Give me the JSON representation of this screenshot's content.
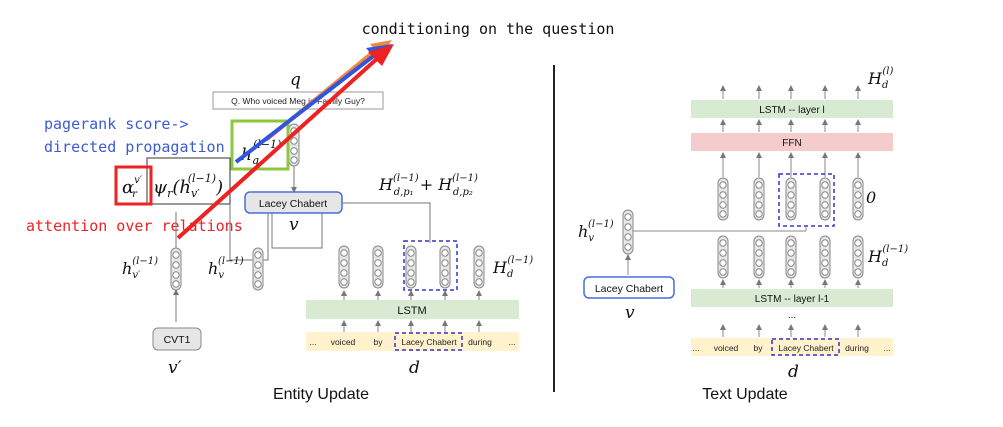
{
  "top_annotation": "conditioning on the question",
  "left_panel": {
    "caption": "Entity Update",
    "question_box": "Q. Who voiced Meg in Family Guy?",
    "q_symbol": "q",
    "h_q_label": "h",
    "h_q_sub": "q",
    "h_q_sup": "(l−1)",
    "pagerank_label": "pagerank score->",
    "directed_label": "directed propagation",
    "attention_label": "attention over relations",
    "alpha_label": "α",
    "alpha_sup": "v′",
    "alpha_sub": "r",
    "psi_label": "ψ",
    "psi_sub": "r",
    "psi_arg_open": "(h",
    "psi_arg_sub": "v′",
    "psi_arg_sup": "(l−1)",
    "psi_arg_close": ")",
    "entity_node": "Lacey Chabert",
    "v_symbol": "v",
    "H_sum_label": "H",
    "H_sum_sup1": "(l−1)",
    "H_sum_sub1": "d,p₁",
    "H_sum_plus": "+ H",
    "H_sum_sup2": "(l−1)",
    "H_sum_sub2": "d,p₂",
    "h_vprime_label": "h",
    "h_vprime_sub": "v′",
    "h_vprime_sup": "(l−1)",
    "h_v_label": "h",
    "h_v_sub": "v",
    "h_v_sup": "(l−1)",
    "Hd_label": "H",
    "Hd_sub": "d",
    "Hd_sup": "(l−1)",
    "lstm_label": "LSTM",
    "tokens": [
      "...",
      "voiced",
      "by",
      "Lacey Chabert",
      "during",
      "..."
    ],
    "cvt_node": "CVT1",
    "vprime_symbol": "v′",
    "d_symbol": "d"
  },
  "right_panel": {
    "caption": "Text Update",
    "Hd_top_label": "H",
    "Hd_top_sub": "d",
    "Hd_top_sup": "(l)",
    "lstm_top_label": "LSTM -- layer l",
    "ffn_label": "FFN",
    "zero_label": "0",
    "h_v_label": "h",
    "h_v_sub": "v",
    "h_v_sup": "(l−1)",
    "Hd_label": "H",
    "Hd_sub": "d",
    "Hd_sup": "(l−1)",
    "lstm_bottom_label": "LSTM -- layer l-1",
    "dots": "...",
    "entity_node": "Lacey Chabert",
    "v_symbol": "v",
    "tokens": [
      "...",
      "voiced",
      "by",
      "Lacey Chabert",
      "during",
      "..."
    ],
    "d_symbol": "d"
  },
  "colors": {
    "lstm_green": "#d9ead3",
    "ffn_red": "#f4cccc",
    "token_yellow": "#fff2cc",
    "node_blue": "#4a6fd8",
    "node_fill": "#e6e6e6",
    "highlight_green": "#8dc63f",
    "arrow_orange": "#f0883e",
    "arrow_blue": "#3355dd",
    "arrow_red": "#ee2222",
    "pagerank_text": "#3b5bd6",
    "attention_text": "#ee2222"
  }
}
